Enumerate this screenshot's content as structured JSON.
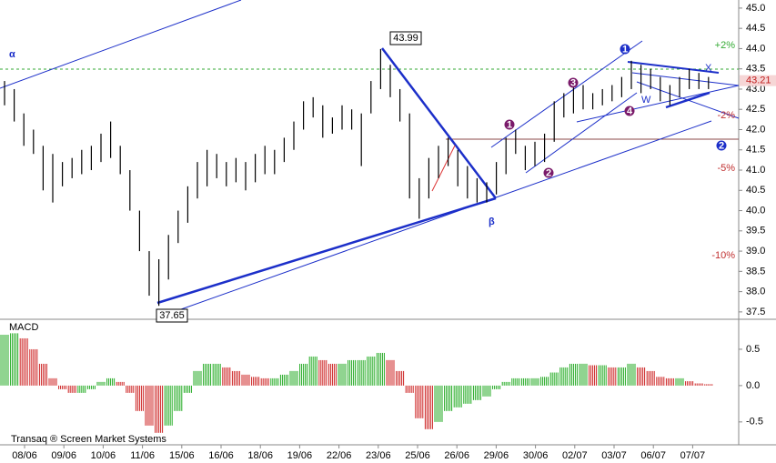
{
  "chart_data": {
    "type": "ohlc",
    "highs": [
      43.2,
      43.0,
      42.4,
      42.0,
      41.6,
      41.4,
      41.2,
      41.3,
      41.5,
      41.6,
      41.9,
      42.2,
      41.6,
      41.0,
      40.0,
      39.0,
      38.8,
      39.4,
      40.0,
      40.6,
      41.2,
      41.5,
      41.4,
      41.2,
      41.3,
      41.2,
      41.4,
      41.6,
      41.5,
      41.8,
      42.2,
      42.7,
      42.8,
      42.6,
      42.3,
      42.6,
      42.5,
      42.4,
      43.2,
      43.99,
      43.6,
      43.0,
      42.4,
      40.8,
      41.3,
      41.6,
      41.8,
      41.5,
      41.1,
      40.8,
      40.7,
      41.2,
      41.8,
      42.0,
      41.6,
      41.7,
      41.9,
      42.7,
      42.9,
      43.2,
      43.1,
      42.9,
      43.0,
      43.1,
      43.3,
      43.7,
      43.6,
      43.5,
      43.3,
      43.1,
      43.3,
      43.5,
      43.4,
      43.3
    ],
    "lows": [
      42.6,
      42.2,
      41.6,
      41.4,
      40.5,
      40.2,
      40.6,
      40.8,
      40.9,
      41.0,
      41.2,
      41.3,
      40.9,
      40.0,
      39.0,
      37.9,
      37.65,
      38.3,
      39.2,
      39.7,
      40.3,
      40.6,
      40.8,
      40.6,
      40.7,
      40.5,
      40.7,
      40.9,
      40.9,
      41.2,
      41.5,
      42.0,
      42.3,
      41.8,
      41.9,
      42.0,
      42.0,
      41.1,
      42.4,
      43.0,
      42.8,
      42.2,
      40.3,
      39.8,
      40.3,
      40.8,
      41.1,
      40.6,
      40.3,
      40.2,
      40.2,
      40.4,
      40.9,
      41.4,
      41.0,
      41.1,
      41.2,
      41.7,
      42.3,
      42.4,
      42.5,
      42.5,
      42.6,
      42.7,
      42.8,
      43.0,
      42.9,
      43.0,
      42.7,
      42.6,
      42.8,
      43.0,
      43.0,
      43.0
    ],
    "bar_color": "#000000",
    "ylim": [
      37.34,
      45.2
    ],
    "yticks": [
      {
        "value": 45,
        "label": "45.0"
      },
      44.5,
      {
        "value": 44,
        "label": "44.0"
      },
      43.5,
      {
        "value": 43,
        "label": "43.0"
      },
      42.5,
      {
        "value": 42,
        "label": "42.0"
      },
      41.5,
      {
        "value": 41,
        "label": "41.0"
      },
      40.5,
      {
        "value": 40,
        "label": "40.0"
      },
      39.5,
      {
        "value": 39,
        "label": "39.0"
      },
      38.5,
      {
        "value": 38,
        "label": "38.0"
      },
      37.5
    ],
    "last_price": 43.21,
    "high_label": "43.99",
    "low_label": "37.65",
    "dates": [
      "08/06",
      "09/06",
      "10/06",
      "11/06",
      "15/06",
      "16/06",
      "18/06",
      "19/06",
      "22/06",
      "23/06",
      "25/06",
      "26/06",
      "29/06",
      "30/06",
      "02/07",
      "03/07",
      "06/07",
      "07/07"
    ],
    "percent_labels": [
      "+2%",
      "-2%",
      "-5%",
      "-10%"
    ],
    "annotations": {
      "alpha": "α",
      "beta": "β",
      "w": "W",
      "x": "X"
    },
    "waves_major": [
      "1",
      "2"
    ],
    "waves_minor": [
      "1",
      "2",
      "3",
      "4"
    ],
    "macd": {
      "title": "MACD",
      "values": [
        0.7,
        0.72,
        0.65,
        0.5,
        0.3,
        0.1,
        -0.05,
        -0.1,
        -0.1,
        -0.05,
        0.05,
        0.1,
        0.05,
        -0.1,
        -0.35,
        -0.55,
        -0.65,
        -0.55,
        -0.35,
        -0.1,
        0.2,
        0.3,
        0.3,
        0.25,
        0.2,
        0.15,
        0.12,
        0.1,
        0.1,
        0.15,
        0.2,
        0.3,
        0.4,
        0.35,
        0.3,
        0.3,
        0.35,
        0.35,
        0.4,
        0.45,
        0.35,
        0.2,
        -0.1,
        -0.45,
        -0.6,
        -0.5,
        -0.35,
        -0.3,
        -0.25,
        -0.2,
        -0.15,
        -0.05,
        0.05,
        0.1,
        0.1,
        0.1,
        0.12,
        0.18,
        0.25,
        0.3,
        0.3,
        0.28,
        0.28,
        0.25,
        0.25,
        0.3,
        0.25,
        0.2,
        0.12,
        0.1,
        0.1,
        0.06,
        0.03,
        0.02
      ],
      "up_color": "#22aa22",
      "down_color": "#cc2222",
      "ylim": [
        -0.79,
        0.9
      ],
      "yticks": [
        0.5,
        {
          "value": 0,
          "label": "0.0"
        },
        -0.5
      ]
    },
    "footer": "Transaq ® Screen Market Systems"
  }
}
